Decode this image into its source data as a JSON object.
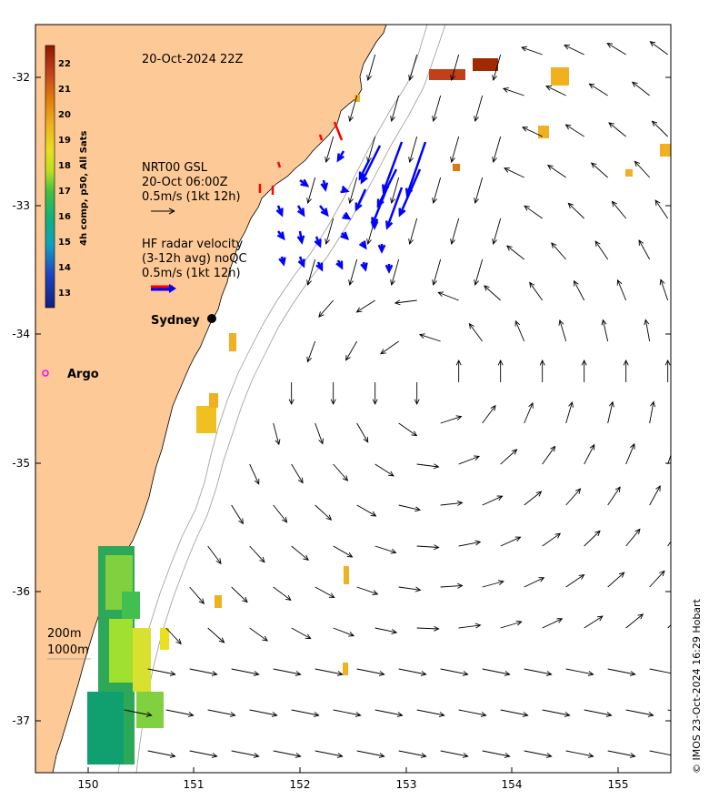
{
  "map": {
    "timestamp": "20-Oct-2024 22Z",
    "credit": "© IMOS 23-Oct-2024 16:29 Hobart",
    "colorbar": {
      "title": "4h comp, p50, All Sats",
      "ticks": [
        "22",
        "21",
        "20",
        "19",
        "18",
        "17",
        "16",
        "15",
        "14",
        "13"
      ],
      "colors": [
        "#8b1a00",
        "#c0401a",
        "#e07a10",
        "#f0b020",
        "#e8e020",
        "#b8e020",
        "#40c040",
        "#10b080",
        "#10a0c0",
        "#2040c0",
        "#102080"
      ]
    },
    "gsl_legend": {
      "line1": "NRT00 GSL",
      "line2": "20-Oct 06:00Z",
      "line3": "0.5m/s (1kt 12h)",
      "arrow_color": "#000000"
    },
    "hf_legend": {
      "line1": "HF radar velocity",
      "line2": "(3-12h avg) noQC",
      "line3": "0.5m/s (1kt 12h)",
      "arrow_color": "#0000ff"
    },
    "places": {
      "sydney": "Sydney",
      "argo": "Argo"
    },
    "bathymetry": {
      "line1": "200m",
      "line2": "1000m"
    },
    "lat_ticks": [
      "-32",
      "-33",
      "-34",
      "-35",
      "-36",
      "-37"
    ],
    "lon_ticks": [
      "150",
      "151",
      "152",
      "153",
      "154",
      "155"
    ],
    "colors": {
      "land": "#fdc996",
      "ocean": "#ffffff",
      "current_arrow": "#000000",
      "hf_arrow": "#0000ff",
      "argo_marker": "#ff00ff"
    }
  }
}
